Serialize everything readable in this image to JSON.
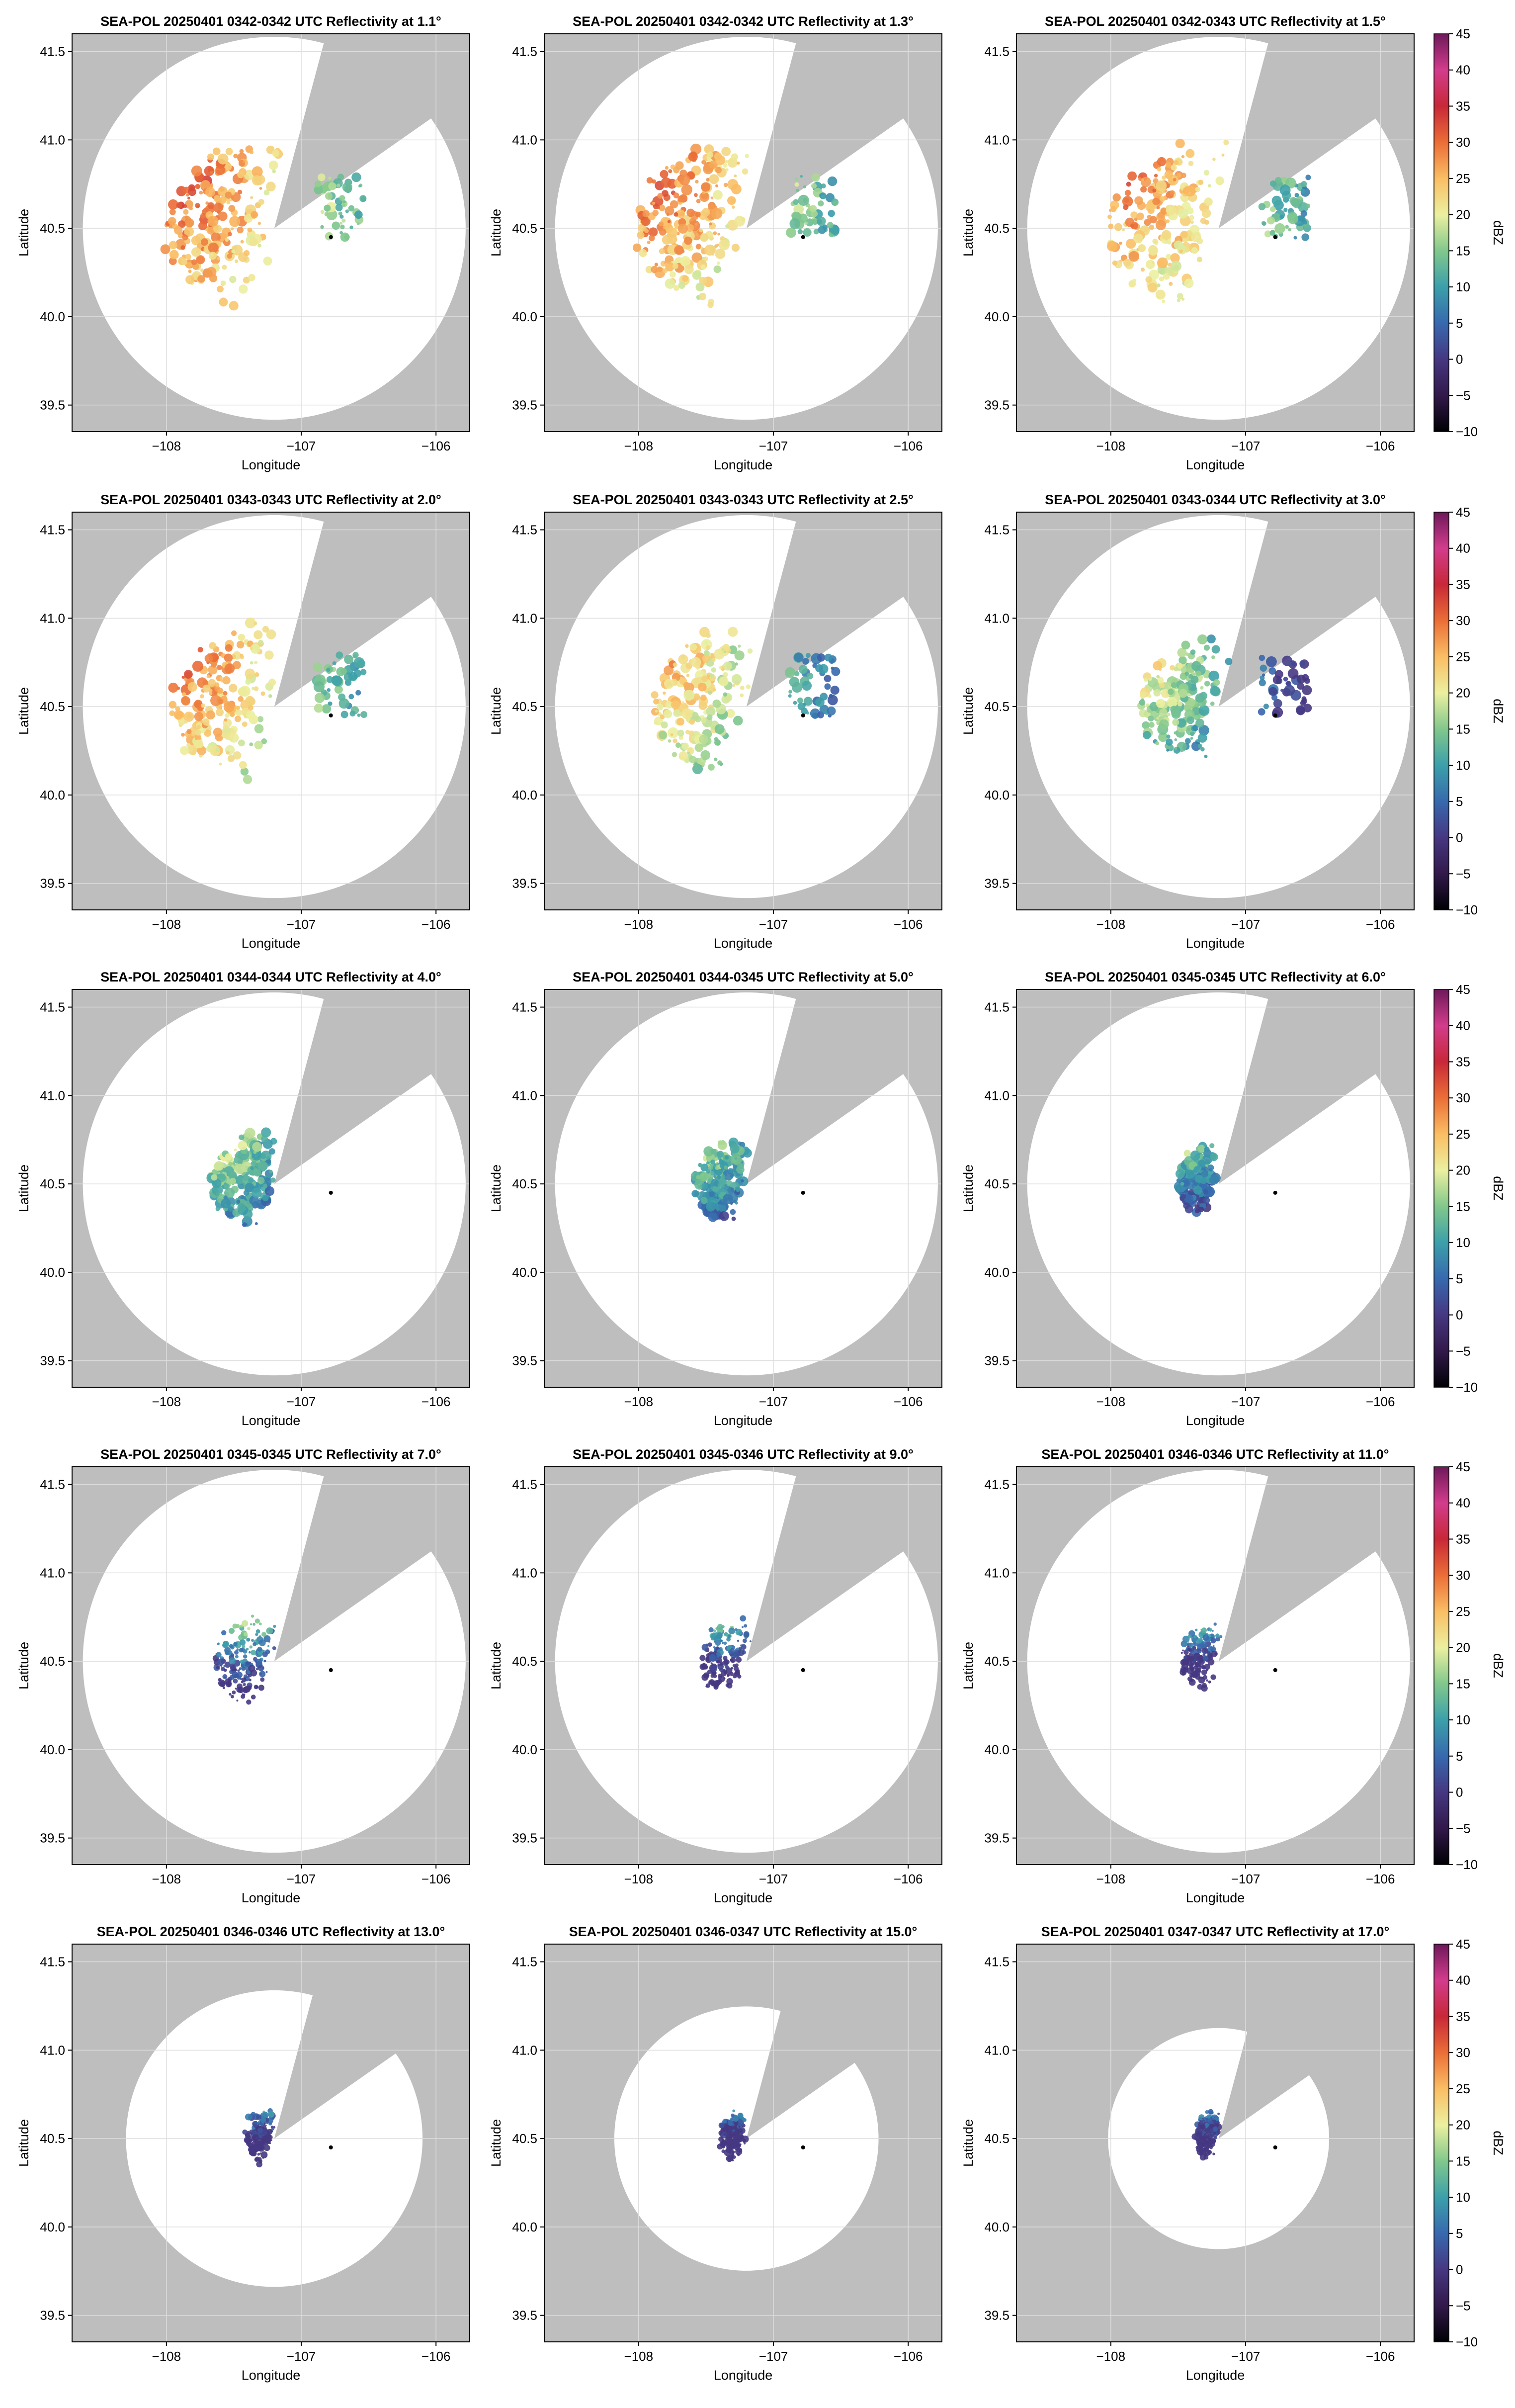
{
  "figure": {
    "xlabel": "Longitude",
    "ylabel": "Latitude",
    "x_ticks": [
      {
        "v": -108,
        "label": "−108"
      },
      {
        "v": -107,
        "label": "−107"
      },
      {
        "v": -106,
        "label": "−106"
      }
    ],
    "y_ticks": [
      {
        "v": 39.5,
        "label": "39.5"
      },
      {
        "v": 40.0,
        "label": "40.0"
      },
      {
        "v": 40.5,
        "label": "40.5"
      },
      {
        "v": 41.0,
        "label": "41.0"
      },
      {
        "v": 41.5,
        "label": "41.5"
      }
    ],
    "colorbar": {
      "label": "dBZ",
      "min": -10,
      "max": 45,
      "ticks": [
        {
          "v": 45,
          "label": "45"
        },
        {
          "v": 40,
          "label": "40"
        },
        {
          "v": 35,
          "label": "35"
        },
        {
          "v": 30,
          "label": "30"
        },
        {
          "v": 25,
          "label": "25"
        },
        {
          "v": 20,
          "label": "20"
        },
        {
          "v": 15,
          "label": "15"
        },
        {
          "v": 10,
          "label": "10"
        },
        {
          "v": 5,
          "label": "5"
        },
        {
          "v": 0,
          "label": "0"
        },
        {
          "v": -5,
          "label": "−5"
        },
        {
          "v": -10,
          "label": "−10"
        }
      ]
    },
    "colors": {
      "blocked_sector": "#bebebe",
      "grid": "#dddddd",
      "scan_area": "#ffffff"
    }
  },
  "chart_data": [
    {
      "type": "heatmap",
      "title": "SEA-POL 20250401 0342-0342 UTC Reflectivity at 1.1°",
      "elevation_deg": 1.1,
      "xlim": [
        -108.7,
        -105.75
      ],
      "ylim": [
        39.35,
        41.6
      ],
      "radar_site": {
        "lon": -107.2,
        "lat": 40.5
      },
      "marker": {
        "lon": -106.78,
        "lat": 40.45
      },
      "echo_extent_deg": 1.5,
      "echo_intensity": 1.0,
      "echo_peak_dbz": 32
    },
    {
      "type": "heatmap",
      "title": "SEA-POL 20250401 0342-0342 UTC Reflectivity at 1.3°",
      "elevation_deg": 1.3,
      "xlim": [
        -108.7,
        -105.75
      ],
      "ylim": [
        39.35,
        41.6
      ],
      "radar_site": {
        "lon": -107.2,
        "lat": 40.5
      },
      "marker": {
        "lon": -106.78,
        "lat": 40.45
      },
      "echo_extent_deg": 1.5,
      "echo_intensity": 1.0,
      "echo_peak_dbz": 31
    },
    {
      "type": "heatmap",
      "title": "SEA-POL 20250401 0342-0343 UTC Reflectivity at 1.5°",
      "elevation_deg": 1.5,
      "xlim": [
        -108.7,
        -105.75
      ],
      "ylim": [
        39.35,
        41.6
      ],
      "radar_site": {
        "lon": -107.2,
        "lat": 40.5
      },
      "marker": {
        "lon": -106.78,
        "lat": 40.45
      },
      "echo_extent_deg": 1.5,
      "echo_intensity": 1.0,
      "echo_peak_dbz": 30
    },
    {
      "type": "heatmap",
      "title": "SEA-POL 20250401 0343-0343 UTC Reflectivity at 2.0°",
      "elevation_deg": 2.0,
      "xlim": [
        -108.7,
        -105.75
      ],
      "ylim": [
        39.35,
        41.6
      ],
      "radar_site": {
        "lon": -107.2,
        "lat": 40.5
      },
      "marker": {
        "lon": -106.78,
        "lat": 40.45
      },
      "echo_extent_deg": 1.4,
      "echo_intensity": 0.95,
      "echo_peak_dbz": 30
    },
    {
      "type": "heatmap",
      "title": "SEA-POL 20250401 0343-0343 UTC Reflectivity at 2.5°",
      "elevation_deg": 2.5,
      "xlim": [
        -108.7,
        -105.75
      ],
      "ylim": [
        39.35,
        41.6
      ],
      "radar_site": {
        "lon": -107.2,
        "lat": 40.5
      },
      "marker": {
        "lon": -106.78,
        "lat": 40.45
      },
      "echo_extent_deg": 1.3,
      "echo_intensity": 0.9,
      "echo_peak_dbz": 27
    },
    {
      "type": "heatmap",
      "title": "SEA-POL 20250401 0343-0344 UTC Reflectivity at 3.0°",
      "elevation_deg": 3.0,
      "xlim": [
        -108.7,
        -105.75
      ],
      "ylim": [
        39.35,
        41.6
      ],
      "radar_site": {
        "lon": -107.2,
        "lat": 40.5
      },
      "marker": {
        "lon": -106.78,
        "lat": 40.45
      },
      "echo_extent_deg": 1.1,
      "echo_intensity": 0.8,
      "echo_peak_dbz": 22
    },
    {
      "type": "heatmap",
      "title": "SEA-POL 20250401 0344-0344 UTC Reflectivity at 4.0°",
      "elevation_deg": 4.0,
      "xlim": [
        -108.7,
        -105.75
      ],
      "ylim": [
        39.35,
        41.6
      ],
      "radar_site": {
        "lon": -107.2,
        "lat": 40.5
      },
      "marker": {
        "lon": -106.78,
        "lat": 40.45
      },
      "echo_extent_deg": 0.85,
      "echo_intensity": 0.7,
      "echo_peak_dbz": 20
    },
    {
      "type": "heatmap",
      "title": "SEA-POL 20250401 0344-0345 UTC Reflectivity at 5.0°",
      "elevation_deg": 5.0,
      "xlim": [
        -108.7,
        -105.75
      ],
      "ylim": [
        39.35,
        41.6
      ],
      "radar_site": {
        "lon": -107.2,
        "lat": 40.5
      },
      "marker": {
        "lon": -106.78,
        "lat": 40.45
      },
      "echo_extent_deg": 0.7,
      "echo_intensity": 0.65,
      "echo_peak_dbz": 19
    },
    {
      "type": "heatmap",
      "title": "SEA-POL 20250401 0345-0345 UTC Reflectivity at 6.0°",
      "elevation_deg": 6.0,
      "xlim": [
        -108.7,
        -105.75
      ],
      "ylim": [
        39.35,
        41.6
      ],
      "radar_site": {
        "lon": -107.2,
        "lat": 40.5
      },
      "marker": {
        "lon": -106.78,
        "lat": 40.45
      },
      "echo_extent_deg": 0.55,
      "echo_intensity": 0.6,
      "echo_peak_dbz": 18
    },
    {
      "type": "heatmap",
      "title": "SEA-POL 20250401 0345-0345 UTC Reflectivity at 7.0°",
      "elevation_deg": 7.0,
      "xlim": [
        -108.7,
        -105.75
      ],
      "ylim": [
        39.35,
        41.6
      ],
      "radar_site": {
        "lon": -107.2,
        "lat": 40.5
      },
      "marker": {
        "lon": -106.78,
        "lat": 40.45
      },
      "echo_extent_deg": 0.45,
      "echo_intensity": 0.55,
      "echo_peak_dbz": 18
    },
    {
      "type": "heatmap",
      "title": "SEA-POL 20250401 0345-0346 UTC Reflectivity at 9.0°",
      "elevation_deg": 9.0,
      "xlim": [
        -108.7,
        -105.75
      ],
      "ylim": [
        39.35,
        41.6
      ],
      "radar_site": {
        "lon": -107.2,
        "lat": 40.5
      },
      "marker": {
        "lon": -106.78,
        "lat": 40.45
      },
      "echo_extent_deg": 0.35,
      "echo_intensity": 0.5,
      "echo_peak_dbz": 17
    },
    {
      "type": "heatmap",
      "title": "SEA-POL 20250401 0346-0346 UTC Reflectivity at 11.0°",
      "elevation_deg": 11.0,
      "xlim": [
        -108.7,
        -105.75
      ],
      "ylim": [
        39.35,
        41.6
      ],
      "radar_site": {
        "lon": -107.2,
        "lat": 40.5
      },
      "marker": {
        "lon": -106.78,
        "lat": 40.45
      },
      "echo_extent_deg": 0.28,
      "echo_intensity": 0.5,
      "echo_peak_dbz": 17
    },
    {
      "type": "heatmap",
      "title": "SEA-POL 20250401 0346-0346 UTC Reflectivity at 13.0°",
      "elevation_deg": 13.0,
      "xlim": [
        -108.7,
        -105.75
      ],
      "ylim": [
        39.35,
        41.6
      ],
      "radar_site": {
        "lon": -107.2,
        "lat": 40.5
      },
      "marker": {
        "lon": -106.78,
        "lat": 40.45
      },
      "echo_extent_deg": 0.22,
      "echo_intensity": 0.5,
      "echo_peak_dbz": 16
    },
    {
      "type": "heatmap",
      "title": "SEA-POL 20250401 0346-0347 UTC Reflectivity at 15.0°",
      "elevation_deg": 15.0,
      "xlim": [
        -108.7,
        -105.75
      ],
      "ylim": [
        39.35,
        41.6
      ],
      "radar_site": {
        "lon": -107.2,
        "lat": 40.5
      },
      "marker": {
        "lon": -106.78,
        "lat": 40.45
      },
      "echo_extent_deg": 0.2,
      "echo_intensity": 0.5,
      "echo_peak_dbz": 16
    },
    {
      "type": "heatmap",
      "title": "SEA-POL 20250401 0347-0347 UTC Reflectivity at 17.0°",
      "elevation_deg": 17.0,
      "xlim": [
        -108.7,
        -105.75
      ],
      "ylim": [
        39.35,
        41.6
      ],
      "radar_site": {
        "lon": -107.2,
        "lat": 40.5
      },
      "marker": {
        "lon": -106.78,
        "lat": 40.45
      },
      "echo_extent_deg": 0.18,
      "echo_intensity": 0.5,
      "echo_peak_dbz": 16
    }
  ]
}
